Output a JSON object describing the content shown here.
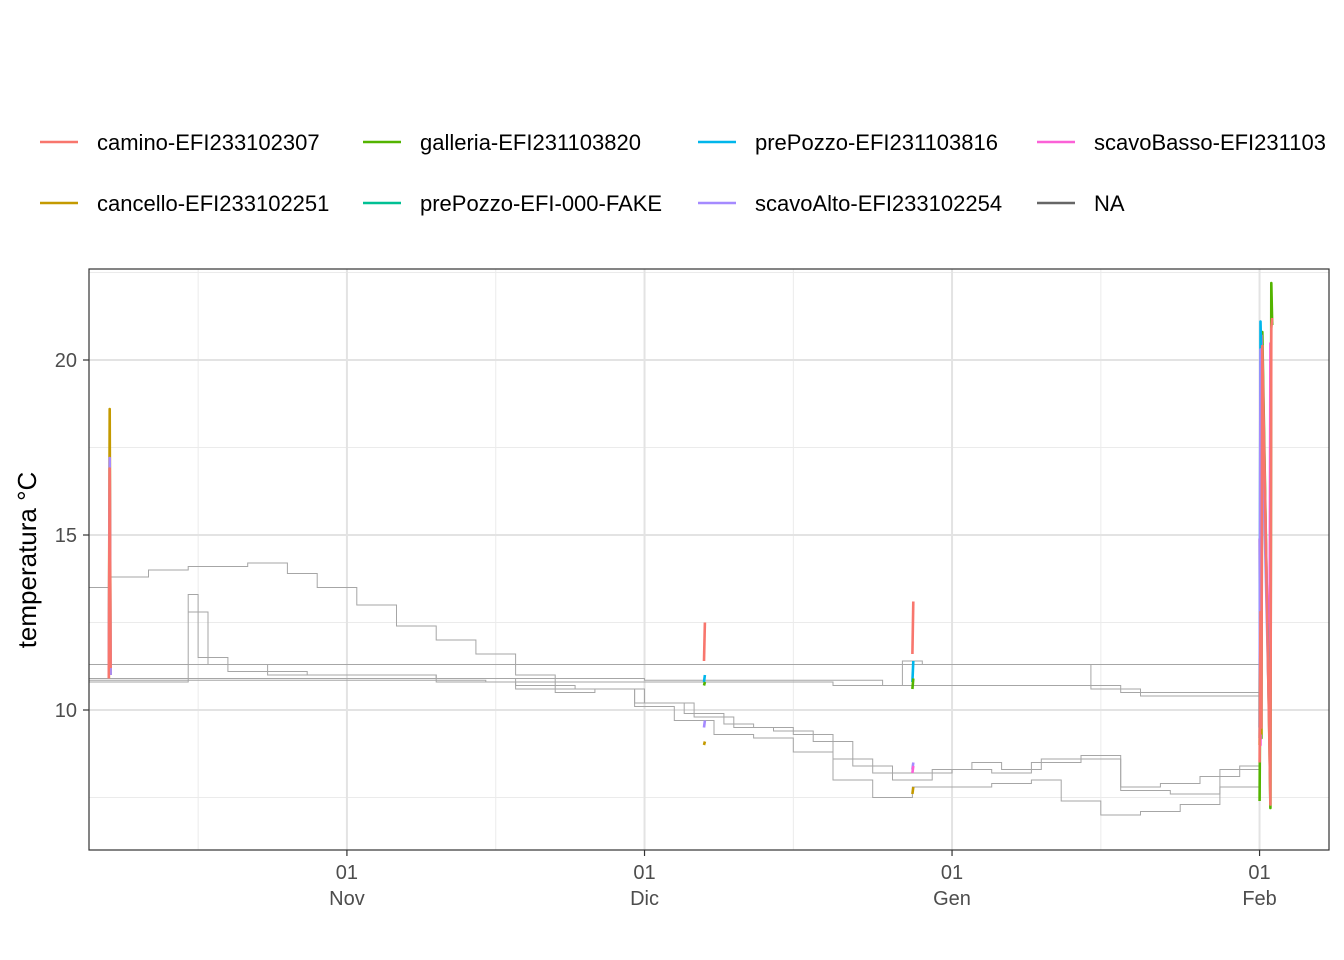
{
  "chart_data": {
    "type": "line",
    "title": "",
    "xlabel": "",
    "ylabel": "temperatura °C",
    "x_domain": [
      "2023-10-06",
      "2024-02-08"
    ],
    "ylim": [
      6.0,
      22.6
    ],
    "y_ticks": [
      10,
      15,
      20
    ],
    "x_ticks": [
      {
        "date": "2023-11-01",
        "day": "01",
        "month": "Nov"
      },
      {
        "date": "2023-12-01",
        "day": "01",
        "month": "Dic"
      },
      {
        "date": "2024-01-01",
        "day": "01",
        "month": "Gen"
      },
      {
        "date": "2024-02-01",
        "day": "01",
        "month": "Feb"
      }
    ],
    "grid": true,
    "legend_position": "top",
    "legend": [
      {
        "name": "camino-EFI233102307",
        "color": "#F8766D"
      },
      {
        "name": "cancello-EFI233102251",
        "color": "#C49A00"
      },
      {
        "name": "galleria-EFI231103820",
        "color": "#53B400"
      },
      {
        "name": "prePozzo-EFI-000-FAKE",
        "color": "#00C094"
      },
      {
        "name": "prePozzo-EFI231103816",
        "color": "#00B6EB"
      },
      {
        "name": "scavoAlto-EFI233102254",
        "color": "#A58AFF"
      },
      {
        "name": "scavoBasso-EFI231103",
        "color": "#FB61D7"
      },
      {
        "name": "NA",
        "color": "#666666"
      }
    ],
    "background_series_color": "#a6a6a6",
    "background_series": [
      {
        "points": [
          [
            "2023-10-06",
            13.5
          ],
          [
            "2023-10-08",
            13.8
          ],
          [
            "2023-10-12",
            14.0
          ],
          [
            "2023-10-16",
            14.1
          ],
          [
            "2023-10-22",
            14.2
          ],
          [
            "2023-10-26",
            13.9
          ],
          [
            "2023-10-29",
            13.5
          ],
          [
            "2023-11-02",
            13.0
          ],
          [
            "2023-11-06",
            12.4
          ],
          [
            "2023-11-10",
            12.0
          ],
          [
            "2023-11-14",
            11.6
          ],
          [
            "2023-11-18",
            11.0
          ],
          [
            "2023-11-22",
            10.6
          ],
          [
            "2023-11-26",
            10.6
          ],
          [
            "2023-11-30",
            10.2
          ],
          [
            "2023-12-03",
            10.2
          ],
          [
            "2023-12-06",
            9.8
          ],
          [
            "2023-12-10",
            9.5
          ],
          [
            "2023-12-14",
            9.4
          ],
          [
            "2023-12-18",
            9.1
          ],
          [
            "2023-12-22",
            8.4
          ],
          [
            "2023-12-26",
            8.0
          ],
          [
            "2023-12-30",
            8.3
          ],
          [
            "2024-01-03",
            8.5
          ],
          [
            "2024-01-06",
            8.3
          ],
          [
            "2024-01-10",
            8.6
          ],
          [
            "2024-01-14",
            8.6
          ],
          [
            "2024-01-18",
            7.8
          ],
          [
            "2024-01-22",
            7.9
          ],
          [
            "2024-01-26",
            8.1
          ],
          [
            "2024-01-30",
            8.4
          ],
          [
            "2024-02-01",
            8.6
          ]
        ]
      },
      {
        "points": [
          [
            "2023-10-06",
            10.8
          ],
          [
            "2023-10-15",
            10.8
          ],
          [
            "2023-10-16",
            13.3
          ],
          [
            "2023-10-17",
            11.5
          ],
          [
            "2023-10-20",
            11.1
          ],
          [
            "2023-10-28",
            11.0
          ],
          [
            "2023-11-10",
            10.9
          ],
          [
            "2023-11-18",
            10.6
          ],
          [
            "2023-11-22",
            10.5
          ],
          [
            "2023-11-26",
            10.6
          ],
          [
            "2023-12-01",
            10.2
          ],
          [
            "2023-12-05",
            9.9
          ],
          [
            "2023-12-09",
            9.6
          ],
          [
            "2023-12-12",
            9.5
          ],
          [
            "2023-12-16",
            9.3
          ],
          [
            "2023-12-20",
            8.6
          ],
          [
            "2023-12-24",
            8.2
          ],
          [
            "2023-12-28",
            8.2
          ],
          [
            "2024-01-01",
            8.3
          ],
          [
            "2024-01-05",
            8.2
          ],
          [
            "2024-01-09",
            8.5
          ],
          [
            "2024-01-14",
            8.7
          ],
          [
            "2024-01-18",
            7.7
          ],
          [
            "2024-01-23",
            7.6
          ],
          [
            "2024-01-28",
            8.3
          ],
          [
            "2024-02-01",
            8.5
          ]
        ]
      },
      {
        "points": [
          [
            "2023-10-16",
            12.8
          ],
          [
            "2023-10-18",
            11.3
          ],
          [
            "2023-10-24",
            11.0
          ],
          [
            "2023-11-10",
            10.8
          ],
          [
            "2023-11-18",
            10.7
          ],
          [
            "2023-11-24",
            10.6
          ],
          [
            "2023-11-30",
            10.1
          ],
          [
            "2023-12-04",
            9.7
          ],
          [
            "2023-12-08",
            9.3
          ],
          [
            "2023-12-12",
            9.2
          ],
          [
            "2023-12-16",
            8.8
          ],
          [
            "2023-12-20",
            8.0
          ],
          [
            "2023-12-24",
            7.5
          ],
          [
            "2023-12-28",
            7.8
          ],
          [
            "2024-01-01",
            7.8
          ],
          [
            "2024-01-05",
            7.9
          ],
          [
            "2024-01-09",
            8.0
          ],
          [
            "2024-01-12",
            7.4
          ],
          [
            "2024-01-16",
            7.0
          ],
          [
            "2024-01-20",
            7.1
          ],
          [
            "2024-01-24",
            7.3
          ],
          [
            "2024-01-28",
            7.8
          ],
          [
            "2024-02-01",
            8.1
          ]
        ]
      },
      {
        "points": [
          [
            "2023-10-06",
            11.3
          ],
          [
            "2024-02-01",
            11.3
          ]
        ]
      },
      {
        "points": [
          [
            "2023-10-06",
            10.9
          ],
          [
            "2023-11-01",
            10.9
          ],
          [
            "2023-12-01",
            10.85
          ],
          [
            "2023-12-25",
            10.7
          ],
          [
            "2023-12-27",
            11.4
          ],
          [
            "2023-12-29",
            11.3
          ],
          [
            "2024-01-15",
            10.7
          ],
          [
            "2024-01-18",
            10.5
          ],
          [
            "2024-02-01",
            10.5
          ]
        ]
      },
      {
        "points": [
          [
            "2023-10-06",
            10.85
          ],
          [
            "2023-11-15",
            10.8
          ],
          [
            "2023-12-20",
            10.7
          ],
          [
            "2024-01-15",
            10.6
          ],
          [
            "2024-01-20",
            10.4
          ],
          [
            "2024-02-01",
            10.4
          ]
        ]
      }
    ],
    "spikes": [
      {
        "color": "#C49A00",
        "points": [
          [
            "2023-10-08",
            10.9
          ],
          [
            "2023-10-08",
            18.6
          ],
          [
            "2023-10-08",
            11.0
          ]
        ]
      },
      {
        "color": "#A58AFF",
        "points": [
          [
            "2023-10-08",
            11.0
          ],
          [
            "2023-10-08",
            17.2
          ],
          [
            "2023-10-08",
            11.0
          ]
        ]
      },
      {
        "color": "#F8766D",
        "points": [
          [
            "2023-10-08",
            10.9
          ],
          [
            "2023-10-08",
            16.9
          ],
          [
            "2023-10-08",
            11.2
          ]
        ]
      },
      {
        "color": "#F8766D",
        "points": [
          [
            "2023-12-07",
            11.4
          ],
          [
            "2023-12-07",
            12.5
          ]
        ]
      },
      {
        "color": "#00B6EB",
        "points": [
          [
            "2023-12-07",
            10.8
          ],
          [
            "2023-12-07",
            11.0
          ]
        ]
      },
      {
        "color": "#53B400",
        "points": [
          [
            "2023-12-07",
            10.7
          ],
          [
            "2023-12-07",
            10.8
          ]
        ]
      },
      {
        "color": "#A58AFF",
        "points": [
          [
            "2023-12-07",
            9.5
          ],
          [
            "2023-12-07",
            9.7
          ]
        ]
      },
      {
        "color": "#C49A00",
        "points": [
          [
            "2023-12-07",
            9.0
          ],
          [
            "2023-12-07",
            9.1
          ]
        ]
      },
      {
        "color": "#F8766D",
        "points": [
          [
            "2023-12-28",
            11.6
          ],
          [
            "2023-12-28",
            13.1
          ]
        ]
      },
      {
        "color": "#00B6EB",
        "points": [
          [
            "2023-12-28",
            10.8
          ],
          [
            "2023-12-28",
            11.4
          ]
        ]
      },
      {
        "color": "#53B400",
        "points": [
          [
            "2023-12-28",
            10.6
          ],
          [
            "2023-12-28",
            10.9
          ]
        ]
      },
      {
        "color": "#A58AFF",
        "points": [
          [
            "2023-12-28",
            8.3
          ],
          [
            "2023-12-28",
            8.5
          ]
        ]
      },
      {
        "color": "#FB61D7",
        "points": [
          [
            "2023-12-28",
            8.2
          ],
          [
            "2023-12-28",
            8.4
          ]
        ]
      },
      {
        "color": "#C49A00",
        "points": [
          [
            "2023-12-28",
            7.6
          ],
          [
            "2023-12-28",
            7.8
          ]
        ]
      },
      {
        "color": "#53B400",
        "points": [
          [
            "2024-02-01",
            7.4
          ],
          [
            "2024-02-01",
            12.5
          ],
          [
            "2024-02-01",
            9.2
          ],
          [
            "2024-02-01",
            20.8
          ],
          [
            "2024-02-02",
            9.0
          ],
          [
            "2024-02-02",
            7.2
          ],
          [
            "2024-02-02",
            22.2
          ],
          [
            "2024-02-02",
            21.0
          ]
        ]
      },
      {
        "color": "#FB61D7",
        "points": [
          [
            "2024-02-01",
            14.9
          ],
          [
            "2024-02-01",
            9.0
          ],
          [
            "2024-02-01",
            20.7
          ],
          [
            "2024-02-02",
            10.0
          ],
          [
            "2024-02-02",
            20.5
          ]
        ]
      },
      {
        "color": "#00B6EB",
        "points": [
          [
            "2024-02-01",
            9.5
          ],
          [
            "2024-02-01",
            21.1
          ],
          [
            "2024-02-02",
            9.8
          ]
        ]
      },
      {
        "color": "#A58AFF",
        "points": [
          [
            "2024-02-01",
            9.2
          ],
          [
            "2024-02-01",
            20.3
          ],
          [
            "2024-02-02",
            9.4
          ]
        ]
      },
      {
        "color": "#C49A00",
        "points": [
          [
            "2024-02-01",
            9.0
          ],
          [
            "2024-02-01",
            12.2
          ],
          [
            "2024-02-01",
            9.3
          ]
        ]
      },
      {
        "color": "#F8766D",
        "points": [
          [
            "2024-02-01",
            8.5
          ],
          [
            "2024-02-01",
            12.8
          ],
          [
            "2024-02-01",
            9.5
          ],
          [
            "2024-02-01",
            20.4
          ],
          [
            "2024-02-02",
            8.9
          ],
          [
            "2024-02-02",
            7.3
          ],
          [
            "2024-02-02",
            20.9
          ],
          [
            "2024-02-02",
            21.2
          ]
        ]
      }
    ]
  }
}
